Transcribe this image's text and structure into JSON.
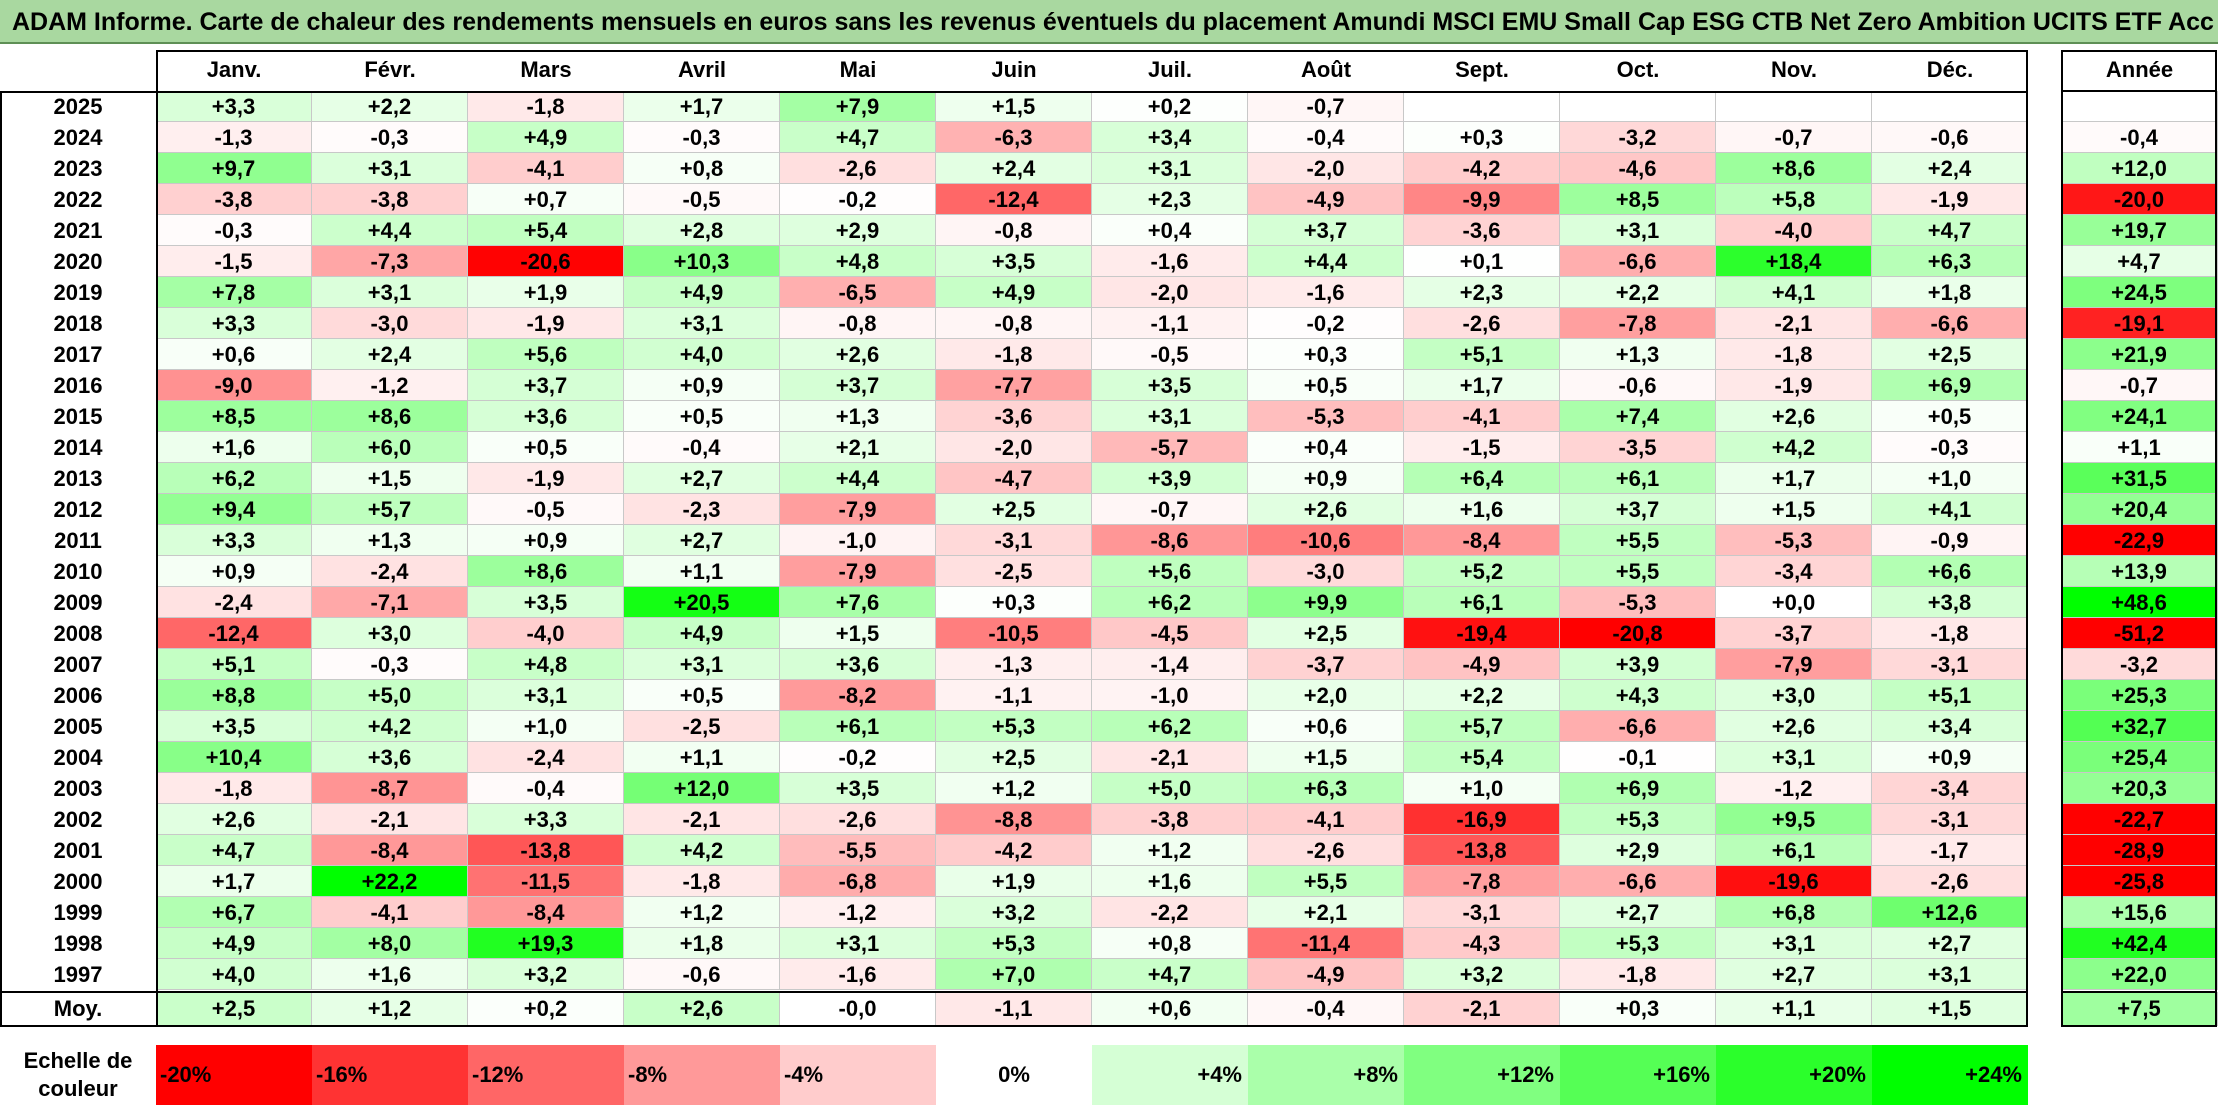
{
  "title": "ADAM Informe. Carte de chaleur des rendements mensuels en euros sans les revenus éventuels du placement Amundi MSCI EMU Small Cap ESG CTB Net Zero Ambition UCITS ETF Acc",
  "chart_data": {
    "type": "heatmap",
    "columns": [
      "Janv.",
      "Févr.",
      "Mars",
      "Avril",
      "Mai",
      "Juin",
      "Juil.",
      "Août",
      "Sept.",
      "Oct.",
      "Nov.",
      "Déc."
    ],
    "annual_label": "Année",
    "rows": [
      {
        "year": "2025",
        "values": [
          3.3,
          2.2,
          -1.8,
          1.7,
          7.9,
          1.5,
          0.2,
          -0.7,
          null,
          null,
          null,
          null
        ],
        "annual": null
      },
      {
        "year": "2024",
        "values": [
          -1.3,
          -0.3,
          4.9,
          -0.3,
          4.7,
          -6.3,
          3.4,
          -0.4,
          0.3,
          -3.2,
          -0.7,
          -0.6
        ],
        "annual": -0.4
      },
      {
        "year": "2023",
        "values": [
          9.7,
          3.1,
          -4.1,
          0.8,
          -2.6,
          2.4,
          3.1,
          -2.0,
          -4.2,
          -4.6,
          8.6,
          2.4
        ],
        "annual": 12.0
      },
      {
        "year": "2022",
        "values": [
          -3.8,
          -3.8,
          0.7,
          -0.5,
          -0.2,
          -12.4,
          2.3,
          -4.9,
          -9.9,
          8.5,
          5.8,
          -1.9
        ],
        "annual": -20.0
      },
      {
        "year": "2021",
        "values": [
          -0.3,
          4.4,
          5.4,
          2.8,
          2.9,
          -0.8,
          0.4,
          3.7,
          -3.6,
          3.1,
          -4.0,
          4.7
        ],
        "annual": 19.7
      },
      {
        "year": "2020",
        "values": [
          -1.5,
          -7.3,
          -20.6,
          10.3,
          4.8,
          3.5,
          -1.6,
          4.4,
          0.1,
          -6.6,
          18.4,
          6.3
        ],
        "annual": 4.7
      },
      {
        "year": "2019",
        "values": [
          7.8,
          3.1,
          1.9,
          4.9,
          -6.5,
          4.9,
          -2.0,
          -1.6,
          2.3,
          2.2,
          4.1,
          1.8
        ],
        "annual": 24.5
      },
      {
        "year": "2018",
        "values": [
          3.3,
          -3.0,
          -1.9,
          3.1,
          -0.8,
          -0.8,
          -1.1,
          -0.2,
          -2.6,
          -7.8,
          -2.1,
          -6.6
        ],
        "annual": -19.1
      },
      {
        "year": "2017",
        "values": [
          0.6,
          2.4,
          5.6,
          4.0,
          2.6,
          -1.8,
          -0.5,
          0.3,
          5.1,
          1.3,
          -1.8,
          2.5
        ],
        "annual": 21.9
      },
      {
        "year": "2016",
        "values": [
          -9.0,
          -1.2,
          3.7,
          0.9,
          3.7,
          -7.7,
          3.5,
          0.5,
          1.7,
          -0.6,
          -1.9,
          6.9
        ],
        "annual": -0.7
      },
      {
        "year": "2015",
        "values": [
          8.5,
          8.6,
          3.6,
          0.5,
          1.3,
          -3.6,
          3.1,
          -5.3,
          -4.1,
          7.4,
          2.6,
          0.5
        ],
        "annual": 24.1
      },
      {
        "year": "2014",
        "values": [
          1.6,
          6.0,
          0.5,
          -0.4,
          2.1,
          -2.0,
          -5.7,
          0.4,
          -1.5,
          -3.5,
          4.2,
          -0.3
        ],
        "annual": 1.1
      },
      {
        "year": "2013",
        "values": [
          6.2,
          1.5,
          -1.9,
          2.7,
          4.4,
          -4.7,
          3.9,
          0.9,
          6.4,
          6.1,
          1.7,
          1.0
        ],
        "annual": 31.5
      },
      {
        "year": "2012",
        "values": [
          9.4,
          5.7,
          -0.5,
          -2.3,
          -7.9,
          2.5,
          -0.7,
          2.6,
          1.6,
          3.7,
          1.5,
          4.1
        ],
        "annual": 20.4
      },
      {
        "year": "2011",
        "values": [
          3.3,
          1.3,
          0.9,
          2.7,
          -1.0,
          -3.1,
          -8.6,
          -10.6,
          -8.4,
          5.5,
          -5.3,
          -0.9
        ],
        "annual": -22.9
      },
      {
        "year": "2010",
        "values": [
          0.9,
          -2.4,
          8.6,
          1.1,
          -7.9,
          -2.5,
          5.6,
          -3.0,
          5.2,
          5.5,
          -3.4,
          6.6
        ],
        "annual": 13.9
      },
      {
        "year": "2009",
        "values": [
          -2.4,
          -7.1,
          3.5,
          20.5,
          7.6,
          0.3,
          6.2,
          9.9,
          6.1,
          -5.3,
          0.0,
          3.8
        ],
        "annual": 48.6
      },
      {
        "year": "2008",
        "values": [
          -12.4,
          3.0,
          -4.0,
          4.9,
          1.5,
          -10.5,
          -4.5,
          2.5,
          -19.4,
          -20.8,
          -3.7,
          -1.8
        ],
        "annual": -51.2
      },
      {
        "year": "2007",
        "values": [
          5.1,
          -0.3,
          4.8,
          3.1,
          3.6,
          -1.3,
          -1.4,
          -3.7,
          -4.9,
          3.9,
          -7.9,
          -3.1
        ],
        "annual": -3.2
      },
      {
        "year": "2006",
        "values": [
          8.8,
          5.0,
          3.1,
          0.5,
          -8.2,
          -1.1,
          -1.0,
          2.0,
          2.2,
          4.3,
          3.0,
          5.1
        ],
        "annual": 25.3
      },
      {
        "year": "2005",
        "values": [
          3.5,
          4.2,
          1.0,
          -2.5,
          6.1,
          5.3,
          6.2,
          0.6,
          5.7,
          -6.6,
          2.6,
          3.4
        ],
        "annual": 32.7
      },
      {
        "year": "2004",
        "values": [
          10.4,
          3.6,
          -2.4,
          1.1,
          -0.2,
          2.5,
          -2.1,
          1.5,
          5.4,
          -0.1,
          3.1,
          0.9
        ],
        "annual": 25.4
      },
      {
        "year": "2003",
        "values": [
          -1.8,
          -8.7,
          -0.4,
          12.0,
          3.5,
          1.2,
          5.0,
          6.3,
          1.0,
          6.9,
          -1.2,
          -3.4
        ],
        "annual": 20.3
      },
      {
        "year": "2002",
        "values": [
          2.6,
          -2.1,
          3.3,
          -2.1,
          -2.6,
          -8.8,
          -3.8,
          -4.1,
          -16.9,
          5.3,
          9.5,
          -3.1
        ],
        "annual": -22.7
      },
      {
        "year": "2001",
        "values": [
          4.7,
          -8.4,
          -13.8,
          4.2,
          -5.5,
          -4.2,
          1.2,
          -2.6,
          -13.8,
          2.9,
          6.1,
          -1.7
        ],
        "annual": -28.9
      },
      {
        "year": "2000",
        "values": [
          1.7,
          22.2,
          -11.5,
          -1.8,
          -6.8,
          1.9,
          1.6,
          5.5,
          -7.8,
          -6.6,
          -19.6,
          -2.6
        ],
        "annual": -25.8
      },
      {
        "year": "1999",
        "values": [
          6.7,
          -4.1,
          -8.4,
          1.2,
          -1.2,
          3.2,
          -2.2,
          2.1,
          -3.1,
          2.7,
          6.8,
          12.6
        ],
        "annual": 15.6
      },
      {
        "year": "1998",
        "values": [
          4.9,
          8.0,
          19.3,
          1.8,
          3.1,
          5.3,
          0.8,
          -11.4,
          -4.3,
          5.3,
          3.1,
          2.7
        ],
        "annual": 42.4
      },
      {
        "year": "1997",
        "values": [
          4.0,
          1.6,
          3.2,
          -0.6,
          -1.6,
          7.0,
          4.7,
          -4.9,
          3.2,
          -1.8,
          2.7,
          3.1
        ],
        "annual": 22.0
      }
    ],
    "average": {
      "label": "Moy.",
      "values": [
        "+2,5",
        "+1,2",
        "+0,2",
        "+2,6",
        "-0,0",
        "-1,1",
        "+0,6",
        "-0,4",
        "-2,1",
        "+0,3",
        "+1,1",
        "+1,5"
      ],
      "annual": "+7,5"
    },
    "color_scale": {
      "label_line1": "Echelle de",
      "label_line2": "couleur",
      "stops": [
        "-20%",
        "-16%",
        "-12%",
        "-8%",
        "-4%",
        "0%",
        "+4%",
        "+8%",
        "+12%",
        "+16%",
        "+20%",
        "+24%"
      ],
      "stop_values": [
        -20,
        -16,
        -12,
        -8,
        -4,
        0,
        4,
        8,
        12,
        16,
        20,
        24
      ],
      "negative_color": "#ff0000",
      "positive_color": "#00ff00",
      "neutral_color": "#ffffff"
    }
  }
}
